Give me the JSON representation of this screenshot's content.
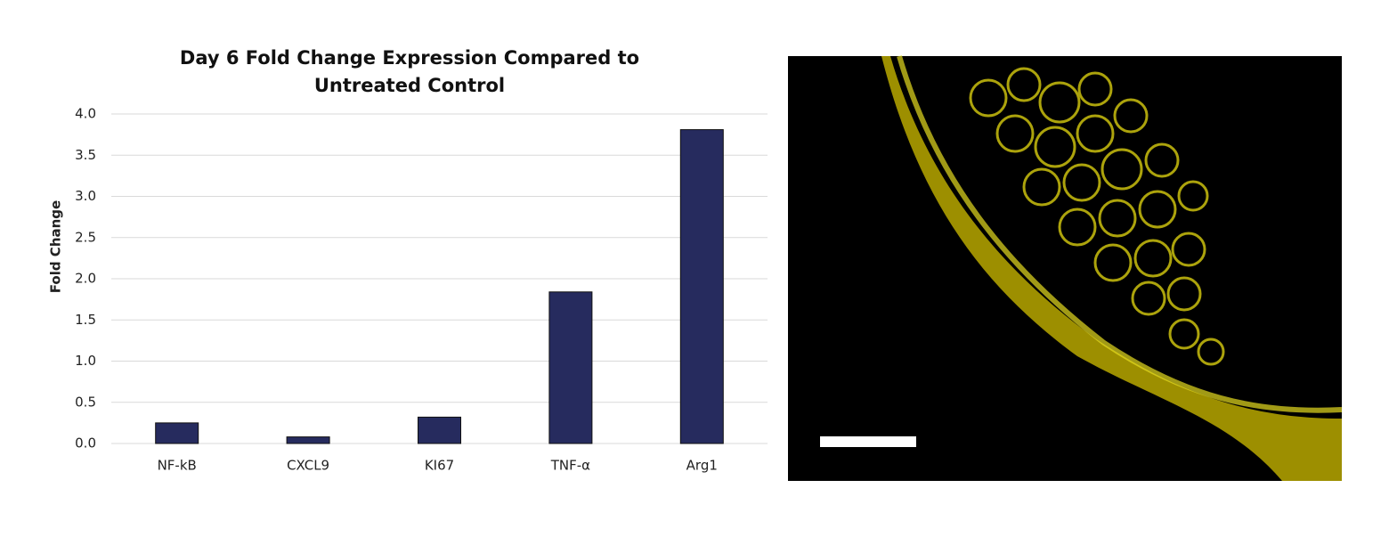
{
  "chart_data": {
    "type": "bar",
    "title": "Day 6 Fold Change Expression Compared to Untreated Control",
    "ylabel": "Fold Change",
    "categories": [
      "NF-kB",
      "CXCL9",
      "KI67",
      "TNF-α",
      "Arg1"
    ],
    "values": [
      0.25,
      0.08,
      0.32,
      1.84,
      3.81
    ],
    "color": "#262b5e",
    "ylim": [
      0,
      4
    ],
    "yticks": [
      {
        "value": 0,
        "label": "0.0"
      },
      0.5,
      {
        "value": 1,
        "label": "1.0"
      },
      1.5,
      {
        "value": 2,
        "label": "2.0"
      },
      2.5,
      {
        "value": 3,
        "label": "3.0"
      },
      3.5,
      {
        "value": 4,
        "label": "4.0"
      }
    ],
    "grid": true
  }
}
